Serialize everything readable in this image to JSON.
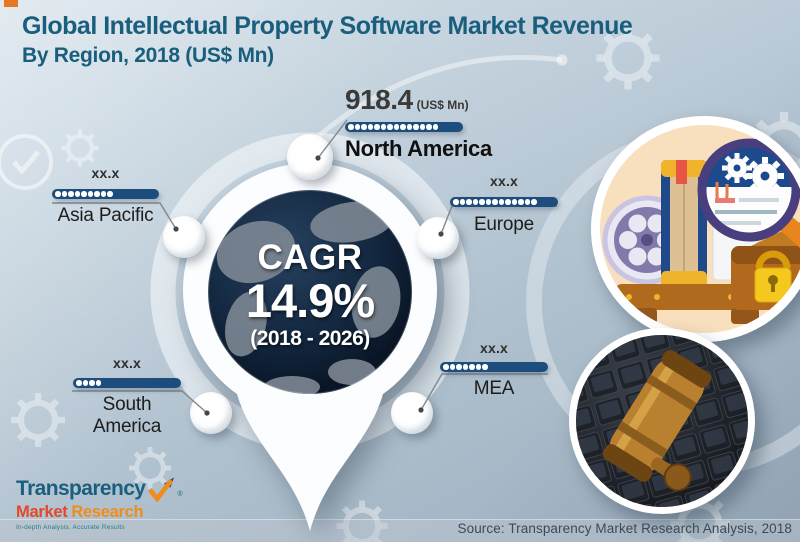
{
  "title": {
    "line1": "Global Intellectual Property Software Market Revenue",
    "line2": "By Region, 2018 (US$ Mn)"
  },
  "center": {
    "label": "CAGR",
    "value": "14.9%",
    "period": "(2018 - 2026)"
  },
  "regions": [
    {
      "name": "North America",
      "value": "918.4",
      "unit": "(US$ Mn)",
      "dots": 14
    },
    {
      "name": "Asia Pacific",
      "value": "xx.x",
      "unit": "",
      "dots": 9
    },
    {
      "name": "Europe",
      "value": "xx.x",
      "unit": "",
      "dots": 13
    },
    {
      "name": "South America",
      "value": "xx.x",
      "unit": "",
      "dots": 4
    },
    {
      "name": "MEA",
      "value": "xx.x",
      "unit": "",
      "dots": 7
    }
  ],
  "logo": {
    "name_top": "Transparency",
    "name_bottom_1": "Market",
    "name_bottom_2": "Research",
    "registered": "®",
    "tagline": "In-depth Analysis. Accurate Results"
  },
  "source": "Source: Transparency Market Research Analysis, 2018",
  "colors": {
    "title_teal": "#1a5e7d",
    "bar_navy": "#1d4d7d",
    "accent_orange": "#e87722",
    "logo_red_orange": "#e2492a",
    "logo_orange": "#f08c1a",
    "globe_navy": "#0e1c30",
    "background_blue_gray": "#aebfcd"
  },
  "chart_data": {
    "type": "bar",
    "title": "Global Intellectual Property Software Market Revenue By Region, 2018 (US$ Mn)",
    "categories": [
      "North America",
      "Asia Pacific",
      "Europe",
      "South America",
      "MEA"
    ],
    "value_labels": [
      "918.4",
      "xx.x",
      "xx.x",
      "xx.x",
      "xx.x"
    ],
    "values": [
      918.4,
      null,
      null,
      null,
      null
    ],
    "unit": "US$ Mn",
    "annotations": [
      "CAGR 14.9% (2018 - 2026)"
    ],
    "notes": "Only the North America 2018 value (918.4 US$ Mn) is disclosed; other regional values are masked as xx.x. Relative dotted-bar fill (dot counts): North America 14, Asia Pacific 9, Europe 13, South America 4, MEA 7."
  }
}
